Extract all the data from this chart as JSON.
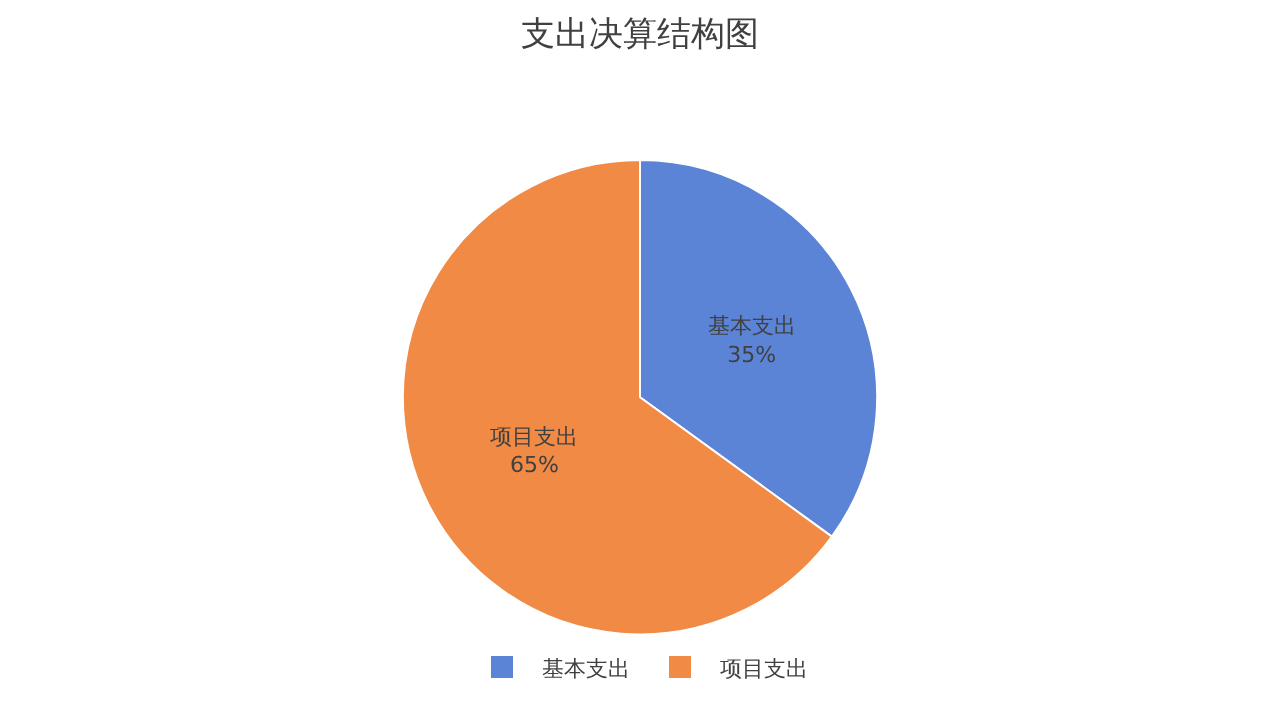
{
  "chart_data": {
    "type": "pie",
    "title": "支出决算结构图",
    "categories": [
      "基本支出",
      "项目支出"
    ],
    "values": [
      35,
      65
    ],
    "value_labels": [
      "35%",
      "65%"
    ],
    "colors": [
      "#5b84d6",
      "#f08a45"
    ],
    "legend": "bottom"
  }
}
